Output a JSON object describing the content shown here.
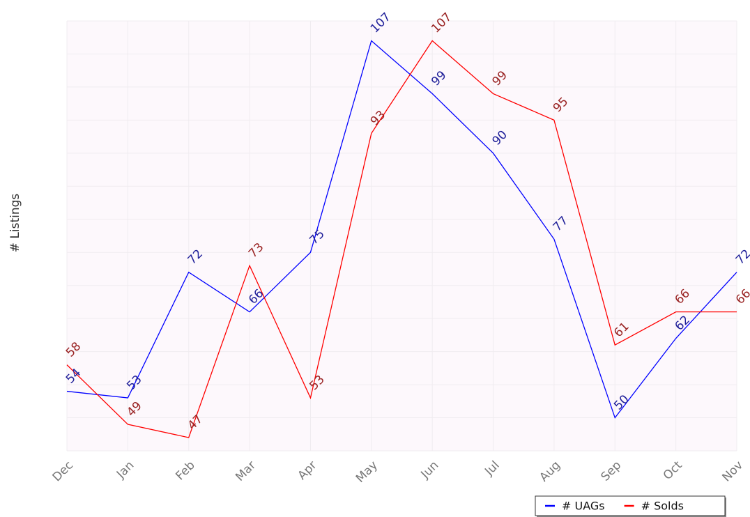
{
  "chart_data": {
    "type": "line",
    "y_label": "# Listings",
    "categories": [
      "Dec",
      "Jan",
      "Feb",
      "Mar",
      "Apr",
      "May",
      "Jun",
      "Jul",
      "Aug",
      "Sep",
      "Oct",
      "Nov"
    ],
    "series": [
      {
        "name": "# UAGs",
        "color": "#0000ff",
        "values": [
          54,
          53,
          72,
          66,
          75,
          107,
          99,
          90,
          77,
          50,
          62,
          72
        ]
      },
      {
        "name": "# Solds",
        "color": "#ff0000",
        "values": [
          58,
          49,
          47,
          73,
          53,
          93,
          107,
          99,
          95,
          61,
          66,
          66
        ]
      }
    ],
    "ylim": [
      45,
      110
    ],
    "yticks": [
      45,
      50,
      55,
      60,
      65,
      70,
      75,
      80,
      85,
      90,
      95,
      100,
      105,
      110
    ],
    "grid": true,
    "legend": "bottom-right"
  }
}
